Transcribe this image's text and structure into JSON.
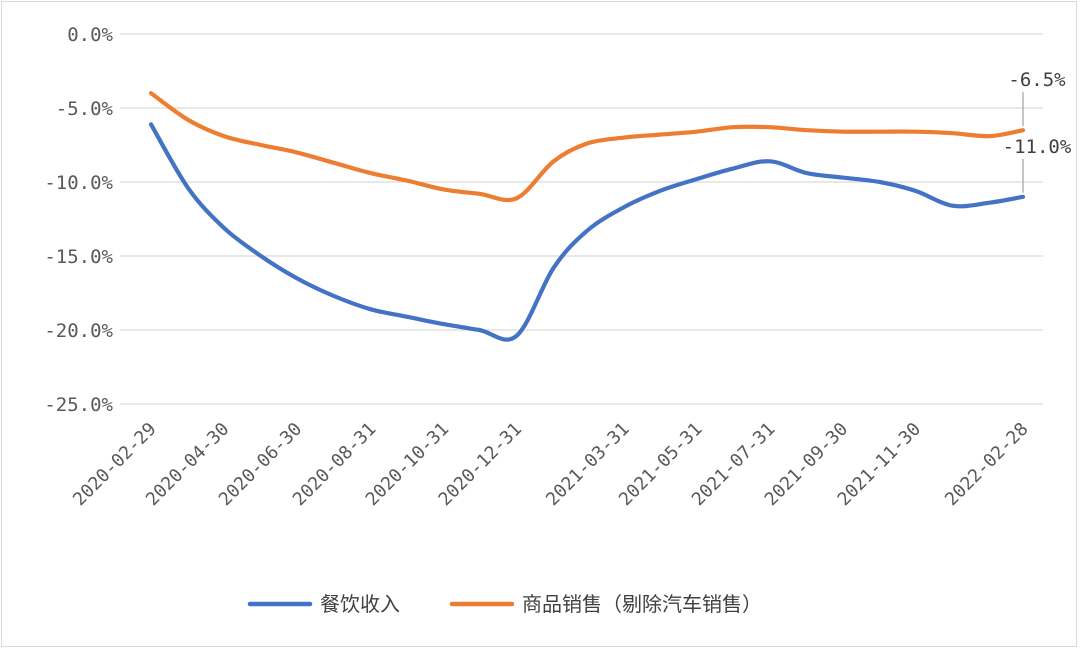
{
  "chart_data": {
    "type": "line",
    "title": "",
    "xlabel": "",
    "ylabel": "",
    "ylim": [
      -25,
      0
    ],
    "y_ticks": [
      0,
      -5,
      -10,
      -15,
      -20,
      -25
    ],
    "y_tick_labels": [
      "0.0%",
      "-5.0%",
      "-10.0%",
      "-15.0%",
      "-20.0%",
      "-25.0%"
    ],
    "x": [
      "2020-02-29",
      "2020-03-31",
      "2020-04-30",
      "2020-05-31",
      "2020-06-30",
      "2020-07-31",
      "2020-08-31",
      "2020-09-30",
      "2020-10-31",
      "2020-11-30",
      "2020-12-31",
      "2021-01-31",
      "2021-02-28",
      "2021-03-31",
      "2021-04-30",
      "2021-05-31",
      "2021-06-30",
      "2021-07-31",
      "2021-08-31",
      "2021-09-30",
      "2021-10-31",
      "2021-11-30",
      "2021-12-31",
      "2022-01-31",
      "2022-02-28"
    ],
    "x_tick_labels": [
      "2020-02-29",
      "2020-04-30",
      "2020-06-30",
      "2020-08-31",
      "2020-10-31",
      "2020-12-31",
      "2021-03-31",
      "2021-05-31",
      "2021-07-31",
      "2021-09-30",
      "2021-11-30",
      "2022-02-28"
    ],
    "grid": true,
    "legend_position": "bottom",
    "series": [
      {
        "name": "餐饮收入",
        "color": "#4472C4",
        "values": [
          -6.1,
          -10.4,
          -13.1,
          -15.0,
          -16.5,
          -17.7,
          -18.6,
          -19.1,
          -19.6,
          -20.0,
          -20.4,
          -15.8,
          -13.3,
          -11.7,
          -10.6,
          -9.8,
          -9.1,
          -8.6,
          -9.4,
          -9.7,
          -10.0,
          -10.6,
          -11.6,
          -11.4,
          -11.0
        ]
      },
      {
        "name": "商品销售（剔除汽车销售）",
        "color": "#ED7D31",
        "values": [
          -4.0,
          -5.8,
          -6.9,
          -7.5,
          -8.0,
          -8.7,
          -9.4,
          -9.9,
          -10.5,
          -10.8,
          -11.1,
          -8.6,
          -7.4,
          -7.0,
          -6.8,
          -6.6,
          -6.3,
          -6.3,
          -6.5,
          -6.6,
          -6.6,
          -6.6,
          -6.7,
          -6.9,
          -6.5
        ]
      }
    ],
    "annotations": [
      {
        "series": 1,
        "text": "-6.5%"
      },
      {
        "series": 0,
        "text": "-11.0%"
      }
    ]
  }
}
